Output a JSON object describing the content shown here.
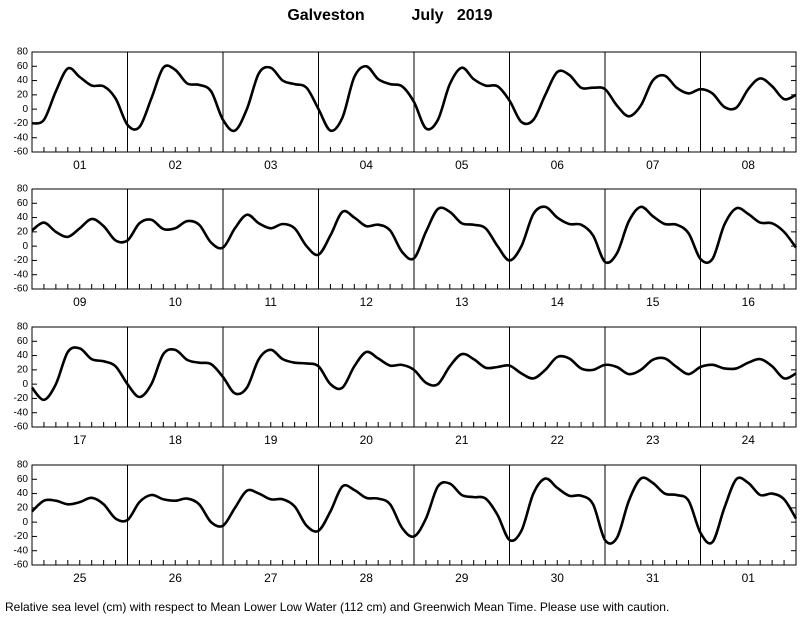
{
  "header": {
    "station": "Galveston",
    "period": "July   2019"
  },
  "footer": "Relative sea level (cm) with respect to Mean Lower Low Water (112 cm) and Greenwich Mean Time. Please use with caution.",
  "chart_data": [
    {
      "type": "line",
      "color": "#000000",
      "grid": false,
      "minor_xtick_step": 3,
      "categories": [
        "01",
        "02",
        "03",
        "04",
        "05",
        "06",
        "07",
        "08"
      ],
      "xlim": [
        0,
        192
      ],
      "xticks": [
        0,
        24,
        48,
        72,
        96,
        120,
        144,
        168,
        192
      ],
      "ylim": [
        -60,
        80
      ],
      "yticks": [
        -60,
        -40,
        -20,
        0,
        20,
        40,
        60,
        80
      ],
      "x": [
        0,
        3,
        6,
        9,
        12,
        15,
        18,
        21,
        24,
        27,
        30,
        33,
        36,
        39,
        42,
        45,
        48,
        51,
        54,
        57,
        60,
        63,
        66,
        69,
        72,
        75,
        78,
        81,
        84,
        87,
        90,
        93,
        96,
        99,
        102,
        105,
        108,
        111,
        114,
        117,
        120,
        123,
        126,
        129,
        132,
        135,
        138,
        141,
        144,
        147,
        150,
        153,
        156,
        159,
        162,
        165,
        168,
        171,
        174,
        177,
        180,
        183,
        186,
        189,
        192
      ],
      "values": [
        -20,
        -15,
        25,
        57,
        45,
        33,
        32,
        15,
        -22,
        -25,
        15,
        58,
        55,
        36,
        34,
        25,
        -15,
        -30,
        0,
        50,
        58,
        40,
        35,
        30,
        0,
        -30,
        -12,
        45,
        60,
        42,
        35,
        32,
        10,
        -27,
        -15,
        35,
        58,
        42,
        33,
        32,
        12,
        -18,
        -15,
        20,
        52,
        48,
        30,
        30,
        28,
        5,
        -10,
        5,
        40,
        47,
        30,
        22,
        28,
        22,
        3,
        2,
        28,
        43,
        32,
        14,
        20
      ]
    },
    {
      "type": "line",
      "color": "#000000",
      "grid": false,
      "minor_xtick_step": 3,
      "categories": [
        "09",
        "10",
        "11",
        "12",
        "13",
        "14",
        "15",
        "16"
      ],
      "xlim": [
        0,
        192
      ],
      "xticks": [
        0,
        24,
        48,
        72,
        96,
        120,
        144,
        168,
        192
      ],
      "ylim": [
        -60,
        80
      ],
      "yticks": [
        -60,
        -40,
        -20,
        0,
        20,
        40,
        60,
        80
      ],
      "x": [
        0,
        3,
        6,
        9,
        12,
        15,
        18,
        21,
        24,
        27,
        30,
        33,
        36,
        39,
        42,
        45,
        48,
        51,
        54,
        57,
        60,
        63,
        66,
        69,
        72,
        75,
        78,
        81,
        84,
        87,
        90,
        93,
        96,
        99,
        102,
        105,
        108,
        111,
        114,
        117,
        120,
        123,
        126,
        129,
        132,
        135,
        138,
        141,
        144,
        147,
        150,
        153,
        156,
        159,
        162,
        165,
        168,
        171,
        174,
        177,
        180,
        183,
        186,
        189,
        192
      ],
      "values": [
        22,
        33,
        20,
        13,
        25,
        38,
        28,
        8,
        8,
        32,
        37,
        24,
        25,
        35,
        30,
        5,
        -2,
        25,
        44,
        32,
        25,
        31,
        25,
        0,
        -12,
        15,
        48,
        40,
        28,
        30,
        22,
        -8,
        -17,
        20,
        52,
        48,
        32,
        30,
        25,
        0,
        -20,
        0,
        45,
        55,
        40,
        31,
        30,
        15,
        -22,
        -10,
        35,
        55,
        42,
        31,
        30,
        18,
        -18,
        -18,
        30,
        53,
        45,
        33,
        32,
        20,
        -2
      ]
    },
    {
      "type": "line",
      "color": "#000000",
      "grid": false,
      "minor_xtick_step": 3,
      "categories": [
        "17",
        "18",
        "19",
        "20",
        "21",
        "22",
        "23",
        "24"
      ],
      "xlim": [
        0,
        192
      ],
      "xticks": [
        0,
        24,
        48,
        72,
        96,
        120,
        144,
        168,
        192
      ],
      "ylim": [
        -60,
        80
      ],
      "yticks": [
        -60,
        -40,
        -20,
        0,
        20,
        40,
        60,
        80
      ],
      "x": [
        0,
        3,
        6,
        9,
        12,
        15,
        18,
        21,
        24,
        27,
        30,
        33,
        36,
        39,
        42,
        45,
        48,
        51,
        54,
        57,
        60,
        63,
        66,
        69,
        72,
        75,
        78,
        81,
        84,
        87,
        90,
        93,
        96,
        99,
        102,
        105,
        108,
        111,
        114,
        117,
        120,
        123,
        126,
        129,
        132,
        135,
        138,
        141,
        144,
        147,
        150,
        153,
        156,
        159,
        162,
        165,
        168,
        171,
        174,
        177,
        180,
        183,
        186,
        189,
        192
      ],
      "values": [
        -5,
        -22,
        0,
        45,
        50,
        35,
        32,
        25,
        0,
        -18,
        0,
        42,
        48,
        34,
        30,
        28,
        10,
        -13,
        -5,
        35,
        48,
        35,
        30,
        29,
        25,
        0,
        -5,
        25,
        45,
        36,
        26,
        27,
        20,
        2,
        0,
        25,
        42,
        35,
        23,
        24,
        26,
        15,
        8,
        20,
        38,
        36,
        22,
        20,
        27,
        24,
        14,
        20,
        34,
        36,
        24,
        14,
        24,
        27,
        22,
        22,
        30,
        35,
        25,
        8,
        15
      ]
    },
    {
      "type": "line",
      "color": "#000000",
      "grid": false,
      "minor_xtick_step": 3,
      "categories": [
        "25",
        "26",
        "27",
        "28",
        "29",
        "30",
        "31",
        "01"
      ],
      "xlim": [
        0,
        192
      ],
      "xticks": [
        0,
        24,
        48,
        72,
        96,
        120,
        144,
        168,
        192
      ],
      "ylim": [
        -60,
        80
      ],
      "yticks": [
        -60,
        -40,
        -20,
        0,
        20,
        40,
        60,
        80
      ],
      "x": [
        0,
        3,
        6,
        9,
        12,
        15,
        18,
        21,
        24,
        27,
        30,
        33,
        36,
        39,
        42,
        45,
        48,
        51,
        54,
        57,
        60,
        63,
        66,
        69,
        72,
        75,
        78,
        81,
        84,
        87,
        90,
        93,
        96,
        99,
        102,
        105,
        108,
        111,
        114,
        117,
        120,
        123,
        126,
        129,
        132,
        135,
        138,
        141,
        144,
        147,
        150,
        153,
        156,
        159,
        162,
        165,
        168,
        171,
        174,
        177,
        180,
        183,
        186,
        189,
        192
      ],
      "values": [
        15,
        30,
        30,
        25,
        28,
        34,
        25,
        5,
        3,
        28,
        38,
        32,
        30,
        33,
        25,
        0,
        -5,
        20,
        44,
        40,
        32,
        32,
        22,
        -5,
        -12,
        15,
        50,
        45,
        34,
        33,
        25,
        -8,
        -20,
        5,
        50,
        54,
        38,
        35,
        33,
        10,
        -25,
        -12,
        40,
        61,
        48,
        37,
        37,
        25,
        -25,
        -22,
        30,
        61,
        55,
        40,
        38,
        30,
        -15,
        -28,
        20,
        60,
        55,
        38,
        40,
        32,
        5
      ]
    }
  ]
}
